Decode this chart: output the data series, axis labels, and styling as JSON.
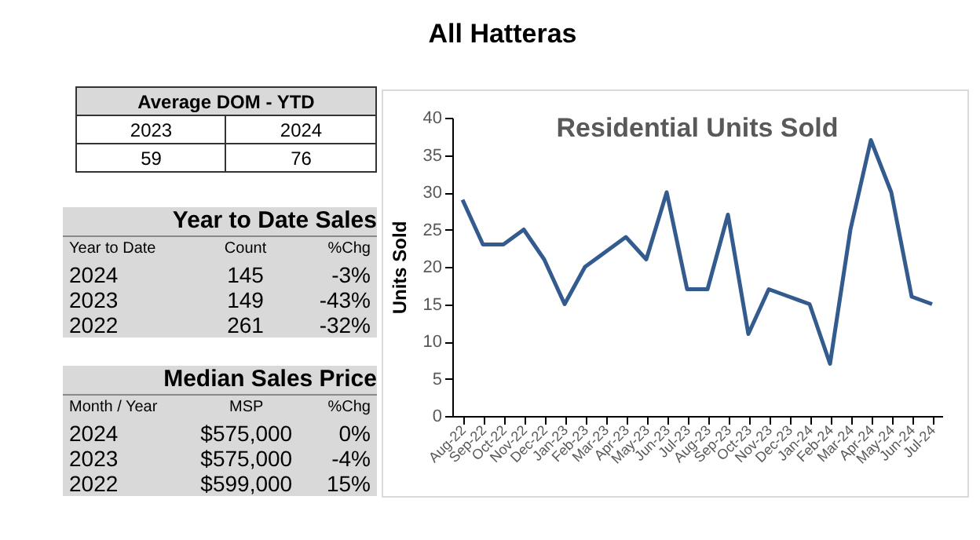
{
  "chart_data": [
    {
      "type": "other",
      "title": "All Hatteras"
    },
    {
      "type": "other",
      "title": "Average DOM - YTD",
      "annotations": [
        "2023",
        "2024",
        "59",
        "76"
      ]
    },
    {
      "type": "other",
      "title": "Year to Date Sales",
      "annotations": [
        "Year to Date",
        "Count",
        "%Chg",
        "2024",
        "145",
        "-3%",
        "2023",
        "149",
        "-43%",
        "2022",
        "261",
        "-32%"
      ]
    },
    {
      "type": "other",
      "title": "Median Sales Price",
      "annotations": [
        "Month / Year",
        "MSP",
        "%Chg",
        "2024",
        "$575,000",
        "0%",
        "2023",
        "$575,000",
        "-4%",
        "2022",
        "$599,000",
        "15%"
      ]
    },
    {
      "type": "line",
      "title": "Residential Units Sold",
      "ylabel": "Units Sold",
      "categories": [
        "Aug-22",
        "Sep-22",
        "Oct-22",
        "Nov-22",
        "Dec-22",
        "Jan-23",
        "Feb-23",
        "Mar-23",
        "Apr-23",
        "May-23",
        "Jun-23",
        "Jul-23",
        "Aug-23",
        "Sep-23",
        "Oct-23",
        "Nov-23",
        "Dec-23",
        "Jan-24",
        "Feb-24",
        "Mar-24",
        "Apr-24",
        "May-24",
        "Jun-24",
        "Jul-24"
      ],
      "series": [
        {
          "color": "#335b8e",
          "values": [
            29,
            23,
            23,
            25,
            21,
            15,
            20,
            22,
            24,
            21,
            30,
            17,
            17,
            27,
            11,
            17,
            16,
            15,
            7,
            25,
            37,
            30,
            16,
            15
          ]
        }
      ],
      "ylim": [
        0,
        40
      ],
      "yticks": [
        0,
        5,
        10,
        15,
        20,
        25,
        30,
        35,
        40
      ],
      "grid": false,
      "legend": false,
      "marker": "none",
      "line_style": "solid"
    }
  ]
}
